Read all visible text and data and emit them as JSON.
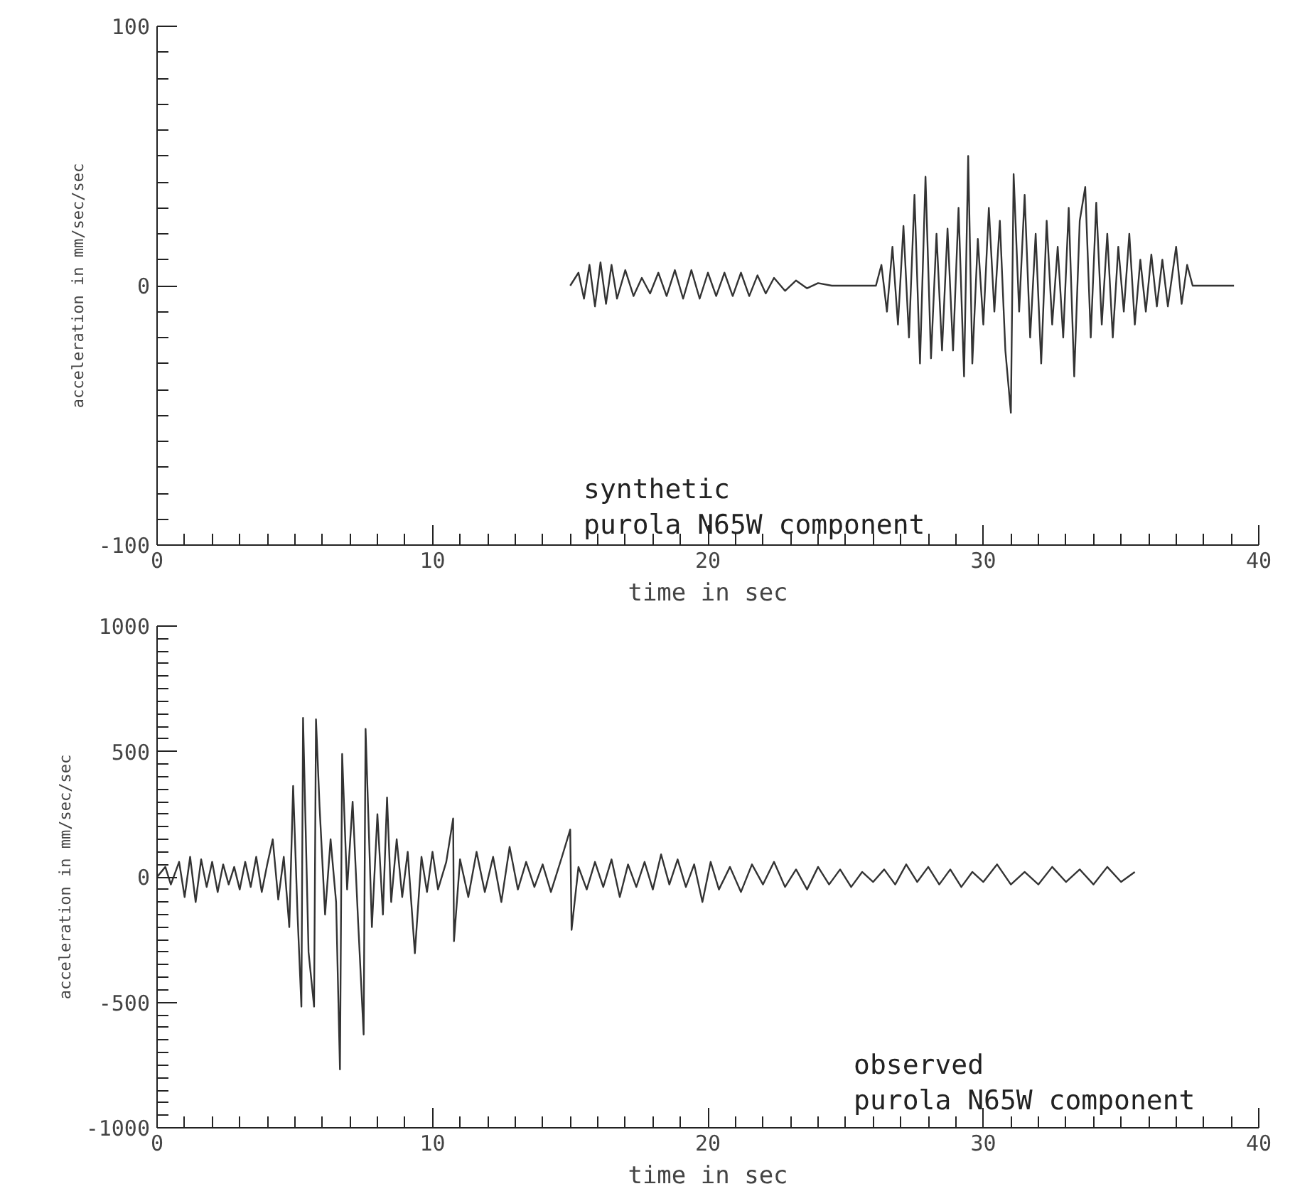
{
  "chart_data": [
    {
      "type": "line",
      "title": "purola N65W component",
      "subtitle": "synthetic",
      "xlabel": "time in sec",
      "ylabel": "acceleration in mm/sec/sec",
      "xlim": [
        0,
        40
      ],
      "xticks": [
        0,
        10,
        20,
        30,
        40
      ],
      "ylim": [
        -100,
        100
      ],
      "yticks": [
        -100,
        0,
        100
      ],
      "grid": false,
      "series": [
        {
          "color": "#333333",
          "x": [
            15.0,
            15.3,
            15.5,
            15.7,
            15.9,
            16.1,
            16.3,
            16.5,
            16.7,
            17.0,
            17.3,
            17.6,
            17.9,
            18.2,
            18.5,
            18.8,
            19.1,
            19.4,
            19.7,
            20.0,
            20.3,
            20.6,
            20.9,
            21.2,
            21.5,
            21.8,
            22.1,
            22.4,
            22.8,
            23.2,
            23.6,
            24.0,
            24.5,
            26.1,
            26.3,
            26.5,
            26.7,
            26.9,
            27.1,
            27.3,
            27.5,
            27.7,
            27.9,
            28.1,
            28.3,
            28.5,
            28.7,
            28.9,
            29.1,
            29.3,
            29.45,
            29.6,
            29.8,
            30.0,
            30.2,
            30.4,
            30.6,
            30.8,
            31.0,
            31.1,
            31.3,
            31.5,
            31.7,
            31.9,
            32.1,
            32.3,
            32.5,
            32.7,
            32.9,
            33.1,
            33.3,
            33.5,
            33.7,
            33.9,
            34.1,
            34.3,
            34.5,
            34.7,
            34.9,
            35.1,
            35.3,
            35.5,
            35.7,
            35.9,
            36.1,
            36.3,
            36.5,
            36.7,
            37.0,
            37.2,
            37.4,
            37.6,
            39.1
          ],
          "values": [
            0,
            5,
            -5,
            8,
            -8,
            9,
            -7,
            8,
            -5,
            6,
            -4,
            3,
            -3,
            5,
            -4,
            6,
            -5,
            6,
            -5,
            5,
            -4,
            5,
            -4,
            5,
            -4,
            4,
            -3,
            3,
            -2,
            2,
            -1,
            1,
            0,
            0,
            8,
            -10,
            15,
            -15,
            23,
            -20,
            35,
            -30,
            42,
            -28,
            20,
            -25,
            22,
            -25,
            30,
            -35,
            50,
            -30,
            18,
            -15,
            30,
            -10,
            25,
            -25,
            -49,
            43,
            -10,
            35,
            -20,
            20,
            -30,
            25,
            -15,
            15,
            -20,
            30,
            -35,
            25,
            38,
            -20,
            32,
            -15,
            20,
            -20,
            15,
            -10,
            20,
            -15,
            10,
            -10,
            12,
            -8,
            10,
            -8,
            15,
            -7,
            8,
            0,
            0
          ]
        }
      ]
    },
    {
      "type": "line",
      "title": "purola N65W component",
      "subtitle": "observed",
      "xlabel": "time in sec",
      "ylabel": "acceleration in mm/sec/sec",
      "xlim": [
        0,
        40
      ],
      "xticks": [
        0,
        10,
        20,
        30,
        40
      ],
      "ylim": [
        -1000,
        1000
      ],
      "yticks": [
        -1000,
        -500,
        0,
        500,
        1000
      ],
      "grid": false,
      "series": [
        {
          "color": "#333333",
          "x": [
            0.0,
            0.3,
            0.5,
            0.8,
            1.0,
            1.2,
            1.4,
            1.6,
            1.8,
            2.0,
            2.2,
            2.4,
            2.6,
            2.8,
            3.0,
            3.2,
            3.4,
            3.6,
            3.8,
            4.0,
            4.2,
            4.4,
            4.6,
            4.8,
            4.94,
            5.1,
            5.24,
            5.3,
            5.5,
            5.7,
            5.77,
            5.9,
            6.1,
            6.3,
            6.5,
            6.64,
            6.72,
            6.9,
            7.1,
            7.3,
            7.5,
            7.57,
            7.8,
            8.0,
            8.2,
            8.35,
            8.5,
            8.7,
            8.9,
            9.1,
            9.36,
            9.6,
            9.8,
            10.0,
            10.2,
            10.5,
            10.75,
            10.78,
            11.0,
            11.3,
            11.6,
            11.9,
            12.2,
            12.5,
            12.8,
            13.1,
            13.4,
            13.7,
            14.0,
            14.3,
            14.7,
            15.0,
            15.05,
            15.3,
            15.6,
            15.9,
            16.2,
            16.5,
            16.8,
            17.1,
            17.4,
            17.7,
            18.0,
            18.3,
            18.6,
            18.9,
            19.2,
            19.5,
            19.8,
            20.1,
            20.4,
            20.8,
            21.2,
            21.6,
            22.0,
            22.4,
            22.8,
            23.2,
            23.6,
            24.0,
            24.4,
            24.8,
            25.2,
            25.6,
            26.0,
            26.4,
            26.8,
            27.2,
            27.6,
            28.0,
            28.4,
            28.8,
            29.2,
            29.6,
            30.0,
            30.5,
            31.0,
            31.5,
            32.0,
            32.5,
            33.0,
            33.5,
            34.0,
            34.5,
            35.0,
            35.5
          ],
          "values": [
            0,
            40,
            -30,
            60,
            -80,
            80,
            -100,
            70,
            -40,
            60,
            -60,
            50,
            -30,
            40,
            -50,
            60,
            -40,
            80,
            -60,
            50,
            150,
            -90,
            80,
            -200,
            363,
            -150,
            -517,
            634,
            -300,
            -517,
            628,
            280,
            -150,
            150,
            -100,
            -767,
            490,
            -50,
            300,
            -180,
            -628,
            590,
            -200,
            250,
            -150,
            317,
            -100,
            150,
            -80,
            100,
            -304,
            80,
            -60,
            100,
            -50,
            60,
            233,
            -256,
            70,
            -80,
            100,
            -60,
            80,
            -100,
            120,
            -50,
            60,
            -40,
            50,
            -60,
            80,
            189,
            -211,
            40,
            -50,
            60,
            -40,
            70,
            -80,
            50,
            -40,
            60,
            -50,
            90,
            -30,
            70,
            -40,
            50,
            -100,
            60,
            -50,
            40,
            -60,
            50,
            -30,
            60,
            -40,
            30,
            -50,
            40,
            -30,
            30,
            -40,
            20,
            -20,
            30,
            -30,
            50,
            -20,
            40,
            -30,
            30,
            -40,
            20,
            -20,
            50,
            -30,
            20,
            -30,
            40,
            -20,
            30,
            -30,
            40,
            -20,
            20
          ]
        }
      ]
    }
  ]
}
